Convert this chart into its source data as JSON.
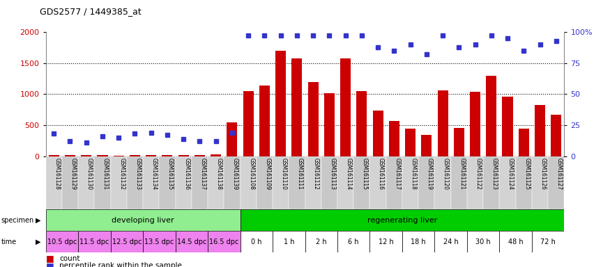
{
  "title": "GDS2577 / 1449385_at",
  "samples": [
    "GSM161128",
    "GSM161129",
    "GSM161130",
    "GSM161131",
    "GSM161132",
    "GSM161133",
    "GSM161134",
    "GSM161135",
    "GSM161136",
    "GSM161137",
    "GSM161138",
    "GSM161139",
    "GSM161108",
    "GSM161109",
    "GSM161110",
    "GSM161111",
    "GSM161112",
    "GSM161113",
    "GSM161114",
    "GSM161115",
    "GSM161116",
    "GSM161117",
    "GSM161118",
    "GSM161119",
    "GSM161120",
    "GSM161121",
    "GSM161122",
    "GSM161123",
    "GSM161124",
    "GSM161125",
    "GSM161126",
    "GSM161127"
  ],
  "counts": [
    18,
    20,
    22,
    15,
    12,
    18,
    15,
    20,
    15,
    15,
    25,
    540,
    1050,
    1140,
    1700,
    1580,
    1190,
    1010,
    1580,
    1050,
    730,
    570,
    440,
    340,
    1060,
    460,
    1040,
    1300,
    960,
    440,
    830,
    670
  ],
  "percentile": [
    18,
    12,
    11,
    16,
    15,
    18,
    19,
    17,
    14,
    12,
    12,
    19,
    97,
    97,
    97,
    97,
    97,
    97,
    97,
    97,
    88,
    85,
    90,
    82,
    97,
    88,
    90,
    97,
    95,
    85,
    90,
    93
  ],
  "specimen_groups": [
    {
      "label": "developing liver",
      "start": 0,
      "end": 12,
      "color": "#90ee90"
    },
    {
      "label": "regenerating liver",
      "start": 12,
      "end": 32,
      "color": "#00cc00"
    }
  ],
  "time_groups": [
    {
      "label": "10.5 dpc",
      "start": 0,
      "end": 2
    },
    {
      "label": "11.5 dpc",
      "start": 2,
      "end": 4
    },
    {
      "label": "12.5 dpc",
      "start": 4,
      "end": 6
    },
    {
      "label": "13.5 dpc",
      "start": 6,
      "end": 8
    },
    {
      "label": "14.5 dpc",
      "start": 8,
      "end": 10
    },
    {
      "label": "16.5 dpc",
      "start": 10,
      "end": 12
    },
    {
      "label": "0 h",
      "start": 12,
      "end": 14
    },
    {
      "label": "1 h",
      "start": 14,
      "end": 16
    },
    {
      "label": "2 h",
      "start": 16,
      "end": 18
    },
    {
      "label": "6 h",
      "start": 18,
      "end": 20
    },
    {
      "label": "12 h",
      "start": 20,
      "end": 22
    },
    {
      "label": "18 h",
      "start": 22,
      "end": 24
    },
    {
      "label": "24 h",
      "start": 24,
      "end": 26
    },
    {
      "label": "30 h",
      "start": 26,
      "end": 28
    },
    {
      "label": "48 h",
      "start": 28,
      "end": 30
    },
    {
      "label": "72 h",
      "start": 30,
      "end": 32
    }
  ],
  "bar_color": "#cc0000",
  "dot_color": "#3333cc",
  "left_ylim": [
    0,
    2000
  ],
  "right_ylim": [
    0,
    100
  ],
  "left_yticks": [
    0,
    500,
    1000,
    1500,
    2000
  ],
  "right_yticks": [
    0,
    25,
    50,
    75,
    100
  ],
  "right_yticklabels": [
    "0",
    "25",
    "50",
    "75",
    "100%"
  ],
  "bg_color": "#ffffff",
  "tick_label_color_left": "#cc0000",
  "tick_label_color_right": "#3333cc",
  "grid_color": "#000000",
  "specimen_purple": "#ee82ee",
  "time_white": "#ffffff",
  "sample_col_even": "#d3d3d3",
  "sample_col_odd": "#c8c8c8"
}
